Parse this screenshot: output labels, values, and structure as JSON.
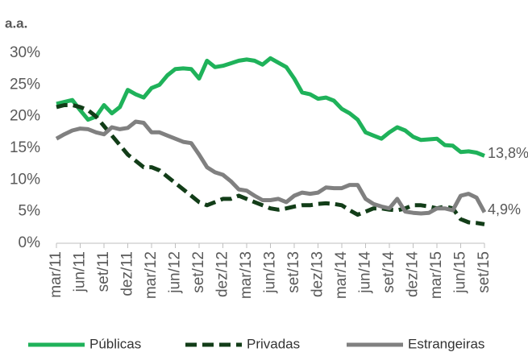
{
  "chart_data": {
    "type": "line",
    "y_label": "a.a.",
    "categories": [
      "mar/11",
      null,
      null,
      "jun/11",
      null,
      null,
      "set/11",
      null,
      null,
      "dez/11",
      null,
      null,
      "mar/12",
      null,
      null,
      "jun/12",
      null,
      null,
      "set/12",
      null,
      null,
      "dez/12",
      null,
      null,
      "mar/13",
      null,
      null,
      "jun/13",
      null,
      null,
      "set/13",
      null,
      null,
      "dez/13",
      null,
      null,
      "mar/14",
      null,
      null,
      "jun/14",
      null,
      null,
      "set/14",
      null,
      null,
      "dez/14",
      null,
      null,
      "mar/15",
      null,
      null,
      "jun/15",
      null,
      null,
      "set/15"
    ],
    "series": [
      {
        "name": "Públicas",
        "color": "#1fb25a",
        "style": "solid",
        "values": [
          22,
          22.3,
          22.6,
          21,
          19.5,
          20,
          21.8,
          20.5,
          21.5,
          24.2,
          23.5,
          23,
          24.5,
          25,
          26.5,
          27.5,
          27.6,
          27.5,
          26,
          28.8,
          27.8,
          28,
          28.4,
          28.8,
          29,
          28.8,
          28.2,
          29.2,
          28.5,
          27.8,
          26,
          23.8,
          23.5,
          22.8,
          23,
          22.5,
          21.2,
          20.5,
          19.5,
          17.5,
          17,
          16.5,
          17.5,
          18.3,
          17.8,
          16.8,
          16.3,
          16.4,
          16.5,
          15.5,
          15.4,
          14.4,
          14.5,
          14.3,
          13.8
        ],
        "value_labels": [
          null,
          null,
          null,
          null,
          null,
          null,
          null,
          null,
          null,
          null,
          null,
          null,
          null,
          null,
          null,
          null,
          null,
          null,
          null,
          null,
          null,
          null,
          null,
          null,
          null,
          null,
          null,
          null,
          null,
          null,
          null,
          null,
          null,
          null,
          null,
          null,
          null,
          null,
          null,
          null,
          null,
          null,
          null,
          null,
          null,
          null,
          null,
          null,
          null,
          null,
          null,
          null,
          null,
          null,
          "13,8%"
        ]
      },
      {
        "name": "Privadas",
        "color": "#123d18",
        "style": "dashed",
        "values": [
          21.5,
          21.8,
          21.8,
          21.5,
          21,
          20,
          18.5,
          17,
          15.5,
          14,
          13,
          12,
          12,
          11.5,
          10.5,
          9.5,
          8.5,
          7.5,
          6.5,
          6,
          6.5,
          7,
          7,
          7.5,
          7,
          6.5,
          6,
          5.5,
          5.3,
          5.5,
          5.8,
          6,
          6,
          6.2,
          6.3,
          6.2,
          6,
          5.2,
          4.5,
          5,
          5.5,
          5.5,
          5.3,
          5.2,
          5.5,
          6,
          6,
          5.8,
          5.5,
          5.8,
          5.5,
          3.8,
          3.3,
          3.2,
          3
        ]
      },
      {
        "name": "Estrangeiras",
        "color": "#808080",
        "style": "solid",
        "values": [
          16.5,
          17.2,
          17.8,
          18.1,
          18,
          17.5,
          17.2,
          18.3,
          18,
          18.2,
          19.2,
          19,
          17.5,
          17.5,
          17,
          16.5,
          16,
          15.8,
          14,
          12,
          11.2,
          10.8,
          9.8,
          8.5,
          8.3,
          7.5,
          6.8,
          6.8,
          7,
          6.5,
          7.5,
          8,
          7.8,
          8,
          8.8,
          8.7,
          8.7,
          9.2,
          9.2,
          7,
          6.2,
          5.8,
          5.5,
          7,
          5,
          4.8,
          4.7,
          4.8,
          5.5,
          5.5,
          5.2,
          7.5,
          7.8,
          7.2,
          4.9
        ],
        "value_labels": [
          null,
          null,
          null,
          null,
          null,
          null,
          null,
          null,
          null,
          null,
          null,
          null,
          null,
          null,
          null,
          null,
          null,
          null,
          null,
          null,
          null,
          null,
          null,
          null,
          null,
          null,
          null,
          null,
          null,
          null,
          null,
          null,
          null,
          null,
          null,
          null,
          null,
          null,
          null,
          null,
          null,
          null,
          null,
          null,
          null,
          null,
          null,
          null,
          null,
          null,
          null,
          null,
          null,
          null,
          "4,9%"
        ]
      }
    ],
    "ylim": [
      0,
      30
    ],
    "yticks": [
      {
        "value": 0,
        "label": "0%"
      },
      {
        "value": 5,
        "label": "5%"
      },
      {
        "value": 10,
        "label": "10%"
      },
      {
        "value": 15,
        "label": "15%"
      },
      {
        "value": 20,
        "label": "20%"
      },
      {
        "value": 25,
        "label": "25%"
      },
      {
        "value": 30,
        "label": "30%"
      }
    ],
    "grid": false,
    "legend": "bottom"
  }
}
